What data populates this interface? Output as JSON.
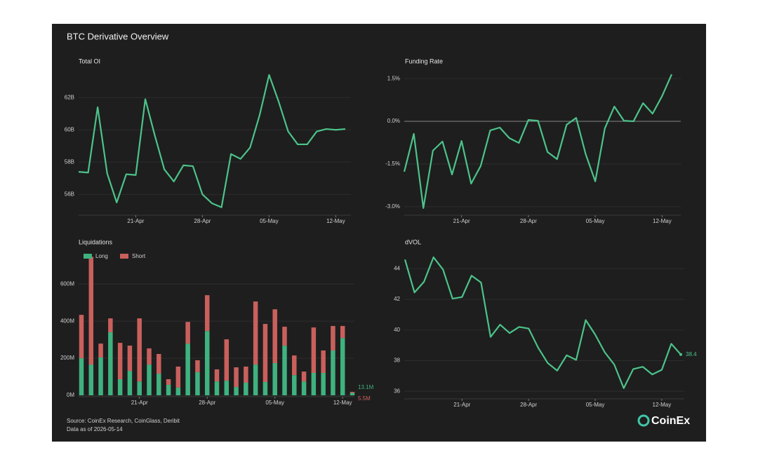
{
  "title": "BTC Derivative Overview",
  "footer": {
    "source": "Source: CoinEx Research, CoinGlass, Deribit",
    "date_note": "Data as of 2026-05-14",
    "brand": "CoinEx"
  },
  "chart_data": [
    {
      "type": "line",
      "title": "Total OI",
      "categories": [
        null,
        null,
        null,
        null,
        null,
        null,
        "21-Apr",
        null,
        null,
        null,
        null,
        null,
        null,
        "28-Apr",
        null,
        null,
        null,
        null,
        null,
        null,
        "05-May",
        null,
        null,
        null,
        null,
        null,
        null,
        "12-May",
        null
      ],
      "series": [
        {
          "name": "Total OI",
          "color": "#4cc38a",
          "values": [
            57.4,
            57.35,
            61.4,
            57.3,
            55.5,
            57.25,
            57.2,
            61.9,
            59.65,
            57.55,
            56.8,
            57.8,
            57.75,
            56.0,
            55.45,
            55.2,
            58.5,
            58.2,
            58.9,
            60.9,
            63.4,
            61.75,
            59.9,
            59.1,
            59.1,
            59.9,
            60.05,
            60.0,
            60.05
          ]
        }
      ],
      "ylim": [
        54.8,
        63.7
      ],
      "yticks": [
        {
          "value": 56,
          "label": "56B"
        },
        {
          "value": 58,
          "label": "58B"
        },
        {
          "value": 60,
          "label": "60B"
        },
        {
          "value": 62,
          "label": "62B"
        }
      ],
      "grid": true
    },
    {
      "type": "line",
      "title": "Funding Rate",
      "categories": [
        null,
        null,
        null,
        null,
        null,
        null,
        "21-Apr",
        null,
        null,
        null,
        null,
        null,
        null,
        "28-Apr",
        null,
        null,
        null,
        null,
        null,
        null,
        "05-May",
        null,
        null,
        null,
        null,
        null,
        null,
        "12-May",
        null
      ],
      "series": [
        {
          "name": "Funding Rate",
          "color": "#4cc38a",
          "values": [
            -1.77,
            -0.44,
            -3.05,
            -1.03,
            -0.71,
            -1.87,
            -0.69,
            -2.19,
            -1.57,
            -0.32,
            -0.22,
            -0.59,
            -0.76,
            0.05,
            0.02,
            -1.08,
            -1.33,
            -0.12,
            0.12,
            -1.16,
            -2.11,
            -0.25,
            0.52,
            0.02,
            0.0,
            0.64,
            0.27,
            0.89,
            1.65
          ]
        }
      ],
      "ylim": [
        -3.25,
        1.8
      ],
      "yticks": [
        {
          "value": -3.0,
          "label": "-3.0%"
        },
        {
          "value": -1.5,
          "label": "-1.5%"
        },
        {
          "value": 0,
          "label": "0.0%"
        },
        {
          "value": 1.5,
          "label": "1.5%"
        }
      ],
      "grid": true,
      "zero_line": true
    },
    {
      "type": "stacked_bar",
      "title": "Liquidations",
      "categories": [
        null,
        null,
        null,
        null,
        null,
        null,
        "21-Apr",
        null,
        null,
        null,
        null,
        null,
        null,
        "28-Apr",
        null,
        null,
        null,
        null,
        null,
        null,
        "05-May",
        null,
        null,
        null,
        null,
        null,
        null,
        "12-May",
        null
      ],
      "series": [
        {
          "name": "Long",
          "color": "#3fb27f",
          "values": [
            200,
            166,
            204,
            340,
            87,
            132,
            75,
            166,
            117,
            57,
            42,
            279,
            125,
            347,
            75,
            79,
            45,
            68,
            166,
            72,
            174,
            268,
            109,
            75,
            121,
            121,
            242,
            309,
            13.1
          ],
          "value_labels": [
            null,
            null,
            null,
            null,
            null,
            null,
            null,
            null,
            null,
            null,
            null,
            null,
            null,
            null,
            null,
            null,
            null,
            null,
            null,
            null,
            null,
            null,
            null,
            null,
            null,
            null,
            null,
            null,
            "13.1M"
          ]
        },
        {
          "name": "Short",
          "color": "#c9605c",
          "values": [
            234,
            581,
            75,
            75,
            196,
            136,
            340,
            87,
            106,
            30,
            113,
            117,
            64,
            193,
            65,
            223,
            106,
            87,
            340,
            313,
            290,
            102,
            106,
            53,
            245,
            121,
            132,
            65,
            5.5
          ],
          "value_labels": [
            null,
            null,
            null,
            null,
            null,
            null,
            null,
            null,
            null,
            null,
            null,
            null,
            null,
            null,
            null,
            null,
            null,
            null,
            null,
            null,
            null,
            null,
            null,
            null,
            null,
            null,
            null,
            null,
            "5.5M"
          ]
        }
      ],
      "ylim": [
        0,
        790
      ],
      "yticks": [
        {
          "value": 0,
          "label": "0M"
        },
        {
          "value": 200,
          "label": "200M"
        },
        {
          "value": 400,
          "label": "400M"
        },
        {
          "value": 600,
          "label": "600M"
        }
      ],
      "grid": true,
      "legend": "top-left"
    },
    {
      "type": "line",
      "title": "dVOL",
      "categories": [
        null,
        null,
        null,
        null,
        null,
        null,
        "21-Apr",
        null,
        null,
        null,
        null,
        null,
        null,
        "28-Apr",
        null,
        null,
        null,
        null,
        null,
        null,
        "05-May",
        null,
        null,
        null,
        null,
        null,
        null,
        "12-May",
        null,
        null
      ],
      "series": [
        {
          "name": "dVOL",
          "color": "#4cc38a",
          "values": [
            44.6,
            42.45,
            43.15,
            44.75,
            43.95,
            42.05,
            42.15,
            43.55,
            43.1,
            39.55,
            40.35,
            39.8,
            40.2,
            40.1,
            38.85,
            37.85,
            37.35,
            38.35,
            38.05,
            40.65,
            39.7,
            38.55,
            37.75,
            36.2,
            37.45,
            37.6,
            37.1,
            37.4,
            39.1,
            38.4
          ]
        }
      ],
      "ylim": [
        35.6,
        45.3
      ],
      "yticks": [
        36,
        38,
        40,
        42,
        44
      ],
      "grid": true,
      "end_label": true
    }
  ]
}
